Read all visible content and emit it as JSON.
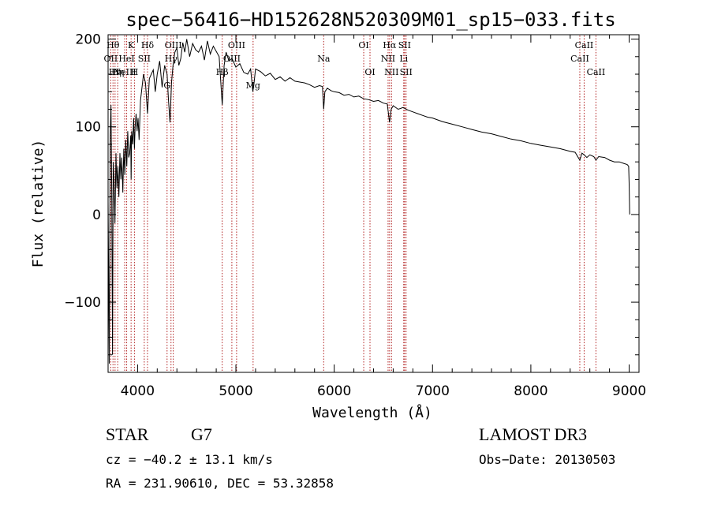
{
  "chart_data": {
    "type": "line",
    "title": "spec−56416−HD152628N520309M01_sp15−033.fits",
    "xlabel": "Wavelength (Å)",
    "ylabel": "Flux (relative)",
    "xlim": [
      3700,
      9100
    ],
    "ylim": [
      -180,
      205
    ],
    "x_ticks": [
      4000,
      5000,
      6000,
      7000,
      8000,
      9000
    ],
    "x_tick_labels": [
      "4000",
      "5000",
      "6000",
      "7000",
      "8000",
      "9000"
    ],
    "y_ticks": [
      -100,
      0,
      100,
      200
    ],
    "y_tick_labels": [
      "−100",
      "0",
      "100",
      "200"
    ],
    "series": [
      {
        "name": "flux",
        "x": [
          3700,
          3712,
          3722,
          3730,
          3738,
          3745,
          3752,
          3760,
          3770,
          3780,
          3790,
          3800,
          3810,
          3820,
          3830,
          3840,
          3850,
          3860,
          3870,
          3880,
          3890,
          3900,
          3910,
          3920,
          3930,
          3934,
          3940,
          3950,
          3960,
          3968,
          3975,
          3985,
          3995,
          4005,
          4015,
          4030,
          4045,
          4060,
          4080,
          4101,
          4120,
          4140,
          4160,
          4180,
          4200,
          4225,
          4250,
          4275,
          4300,
          4315,
          4330,
          4345,
          4360,
          4380,
          4400,
          4420,
          4440,
          4460,
          4480,
          4500,
          4530,
          4560,
          4590,
          4620,
          4650,
          4680,
          4710,
          4740,
          4770,
          4800,
          4830,
          4861,
          4880,
          4900,
          4930,
          4960,
          5000,
          5040,
          5080,
          5120,
          5150,
          5172,
          5183,
          5200,
          5250,
          5300,
          5350,
          5400,
          5450,
          5500,
          5550,
          5600,
          5650,
          5700,
          5750,
          5800,
          5850,
          5880,
          5893,
          5905,
          5930,
          5970,
          6000,
          6050,
          6100,
          6150,
          6200,
          6250,
          6300,
          6350,
          6400,
          6450,
          6500,
          6540,
          6563,
          6580,
          6600,
          6650,
          6700,
          6750,
          6800,
          6850,
          6900,
          6950,
          7000,
          7100,
          7200,
          7300,
          7400,
          7500,
          7600,
          7700,
          7800,
          7900,
          8000,
          8100,
          8200,
          8300,
          8400,
          8450,
          8498,
          8520,
          8542,
          8570,
          8600,
          8640,
          8662,
          8690,
          8750,
          8800,
          8850,
          8900,
          8950,
          8980,
          8995,
          9000,
          9005
        ],
        "values": [
          15,
          -170,
          90,
          125,
          20,
          -160,
          60,
          40,
          -10,
          70,
          30,
          55,
          20,
          70,
          40,
          65,
          25,
          75,
          45,
          85,
          55,
          95,
          65,
          70,
          90,
          40,
          95,
          80,
          110,
          75,
          100,
          115,
          95,
          110,
          85,
          130,
          145,
          160,
          150,
          115,
          155,
          160,
          165,
          140,
          160,
          175,
          145,
          170,
          160,
          130,
          105,
          150,
          170,
          185,
          190,
          170,
          178,
          196,
          185,
          200,
          180,
          195,
          188,
          185,
          192,
          176,
          198,
          183,
          192,
          186,
          180,
          125,
          170,
          185,
          175,
          178,
          168,
          172,
          162,
          160,
          166,
          140,
          148,
          166,
          163,
          158,
          161,
          154,
          157,
          152,
          156,
          152,
          151,
          150,
          148,
          145,
          147,
          146,
          120,
          140,
          144,
          141,
          140,
          139,
          136,
          137,
          134,
          135,
          132,
          131,
          129,
          130,
          127,
          126,
          105,
          120,
          124,
          120,
          122,
          119,
          117,
          115,
          113,
          111,
          110,
          106,
          103,
          100,
          97,
          94,
          92,
          89,
          86,
          84,
          81,
          79,
          77,
          75,
          72,
          71,
          62,
          70,
          68,
          65,
          68,
          66,
          62,
          66,
          65,
          62,
          60,
          60,
          58,
          57,
          55,
          35,
          0
        ]
      }
    ],
    "lines": [
      {
        "wave": 3727,
        "label": "OII",
        "row": 2
      },
      {
        "wave": 3750,
        "label": "Hθ",
        "row": 1
      },
      {
        "wave": 3771,
        "label": "Hη",
        "row": 3
      },
      {
        "wave": 3798,
        "label": "Hη",
        "row": 3
      },
      {
        "wave": 3869,
        "label": "NeIII",
        "row": 3
      },
      {
        "wave": 3889,
        "label": "HeI",
        "row": 2
      },
      {
        "wave": 3934,
        "label": "K",
        "row": 1
      },
      {
        "wave": 3968,
        "label": "H",
        "row": 3
      },
      {
        "wave": 4068,
        "label": "SII",
        "row": 2
      },
      {
        "wave": 4101,
        "label": "Hδ",
        "row": 1
      },
      {
        "wave": 4300,
        "label": "G",
        "row": 4
      },
      {
        "wave": 4340,
        "label": "Hγ",
        "row": 2
      },
      {
        "wave": 4363,
        "label": "OIII",
        "row": 1
      },
      {
        "wave": 4861,
        "label": "Hβ",
        "row": 3
      },
      {
        "wave": 4959,
        "label": "OIII",
        "row": 2
      },
      {
        "wave": 5007,
        "label": "OIII",
        "row": 1
      },
      {
        "wave": 5175,
        "label": "Mg",
        "row": 4
      },
      {
        "wave": 5893,
        "label": "Na",
        "row": 2
      },
      {
        "wave": 6300,
        "label": "OI",
        "row": 1
      },
      {
        "wave": 6364,
        "label": "OI",
        "row": 3
      },
      {
        "wave": 6548,
        "label": "NII",
        "row": 2
      },
      {
        "wave": 6563,
        "label": "Hα",
        "row": 1
      },
      {
        "wave": 6583,
        "label": "NII",
        "row": 3
      },
      {
        "wave": 6707,
        "label": "Li",
        "row": 2
      },
      {
        "wave": 6716,
        "label": "SII",
        "row": 1
      },
      {
        "wave": 6731,
        "label": "SII",
        "row": 3
      },
      {
        "wave": 8498,
        "label": "CaII",
        "row": 2
      },
      {
        "wave": 8542,
        "label": "CaII",
        "row": 1
      },
      {
        "wave": 8662,
        "label": "CaII",
        "row": 3
      }
    ]
  },
  "info": {
    "object_class": "STAR",
    "subclass": "G7",
    "cz": "cz = −40.2 ± 13.1 km/s",
    "coords": "RA = 231.90610, DEC =  53.32858",
    "survey": "LAMOST DR3",
    "obs_date": "Obs−Date: 20130503"
  },
  "colors": {
    "frame": "#000000",
    "spectrum": "#000000",
    "line_marker": "#b22222",
    "background": "#ffffff"
  }
}
